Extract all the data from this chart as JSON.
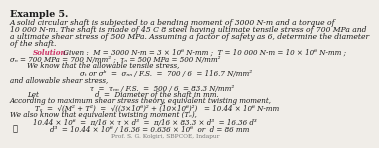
{
  "bg_color": "#f0ede8",
  "title": "Example 5.",
  "prob1": "A solid circular shaft is subjected to a bending moment of 3000 N-m and a torque of",
  "prob2": "10 000 N-m. The shaft is made of 45 C 8 steel having ultimate tensile stress of 700 MPa and",
  "prob3": "a ultimate shear stress of 500 MPa. Assuming a factor of safety as 6, determine the diameter",
  "prob4": "of the shaft.",
  "sol_word": "Solution.",
  "given1": " Given :  M = 3000 N-m = 3 × 10⁶ N-mm ;  T = 10 000 N-m = 10 × 10⁶ N-mm ;",
  "given2": "σₙ = 700 MPa = 700 N/mm² ;  τₙ = 500 MPa = 500 N/mm²",
  "we_know": "We know that the allowable tensile stress,",
  "tensile_eq": "σₜ or σᵇ  =  σₙₙ / F.S.  =  700 / 6  = 116.7 N/mm²",
  "allow_shear": "and allowable shear stress,",
  "shear_eq": "τ  =  τₙₙ / F.S.  =  500 / 6  = 83.3 N/mm²",
  "let_d": "d  =  Diameter of the shaft in mm.",
  "according": "According to maximum shear stress theory, equivalent twisting moment,",
  "te_eq": "Tₑ  =  √(M² + T²)  =  √((3×10⁶)² + (10×10⁶)²)   = 10.44 × 10⁶ N-mm",
  "we_also": "We also know that equivalent twisting moment (Tₑ),",
  "calc1": "10.44 × 10⁶  =  π/16 × τ × d³  =  π/16 × 83.3 × d³  = 16.36 d³",
  "calc2": "d³  = 10.44 × 10⁶ / 16.36 = 0.636 × 10⁶  or  d = 86 mm",
  "therefore": "∴",
  "footer": "Prof. S. G. Kolgiri, SBPCOE, Indapur",
  "sol_color": "#cc3366",
  "text_color": "#1a1a1a",
  "footer_color": "#777777"
}
